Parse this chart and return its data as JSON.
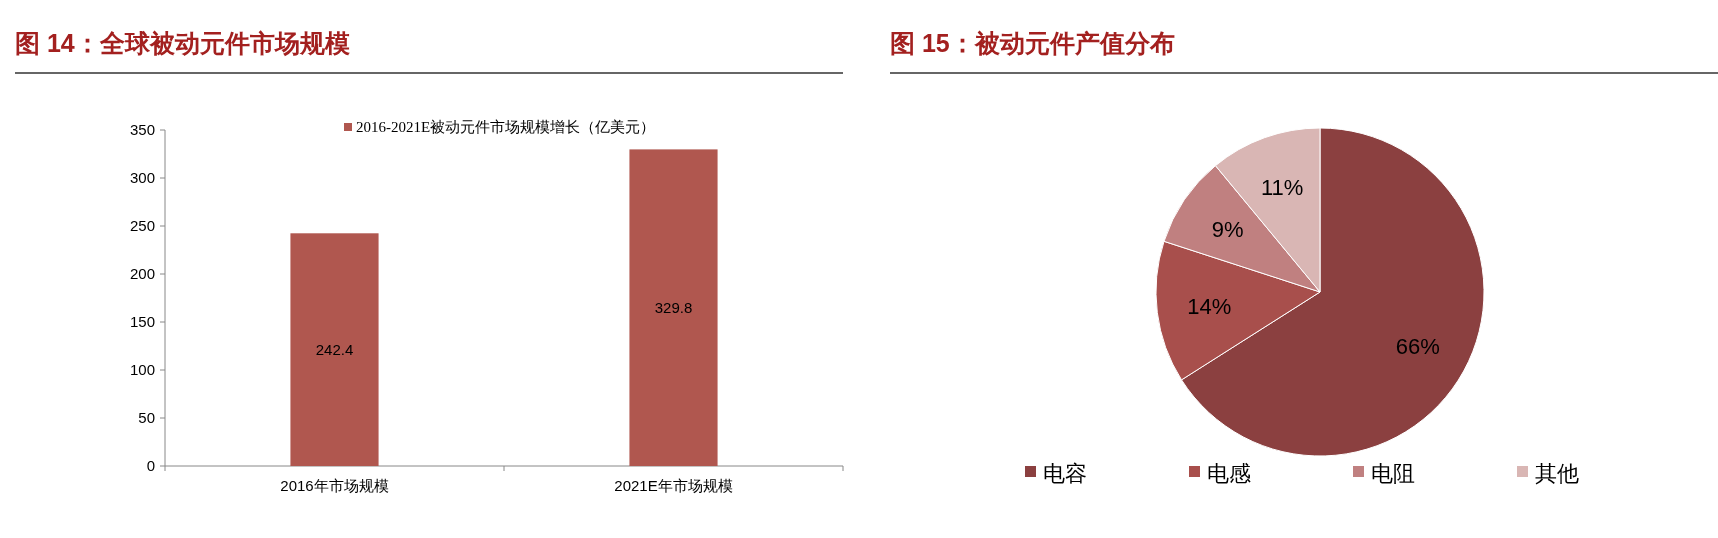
{
  "chart_data": [
    {
      "type": "bar",
      "title": "图 14：全球被动元件市场规模",
      "categories": [
        "2016年市场规模",
        "2021E年市场规模"
      ],
      "series": [
        {
          "name": "2016-2021E被动元件市场规模增长（亿美元）",
          "color": "#b0574f",
          "values": [
            242.4,
            329.8
          ]
        }
      ],
      "ylim": [
        0,
        350
      ],
      "yticks": [
        0,
        50,
        100,
        150,
        200,
        250,
        300,
        350
      ],
      "data_labels": true,
      "legend": "top",
      "grid": false
    },
    {
      "type": "pie",
      "title": "图 15：被动元件产值分布",
      "categories": [
        "电容",
        "电感",
        "电阻",
        "其他"
      ],
      "values": [
        66,
        14,
        9,
        11
      ],
      "colors": [
        "#8b4040",
        "#a84f4c",
        "#c08080",
        "#d9b6b4"
      ],
      "value_labels": [
        "66%",
        "14%",
        "9%",
        "11%"
      ],
      "legend": "bottom"
    }
  ]
}
